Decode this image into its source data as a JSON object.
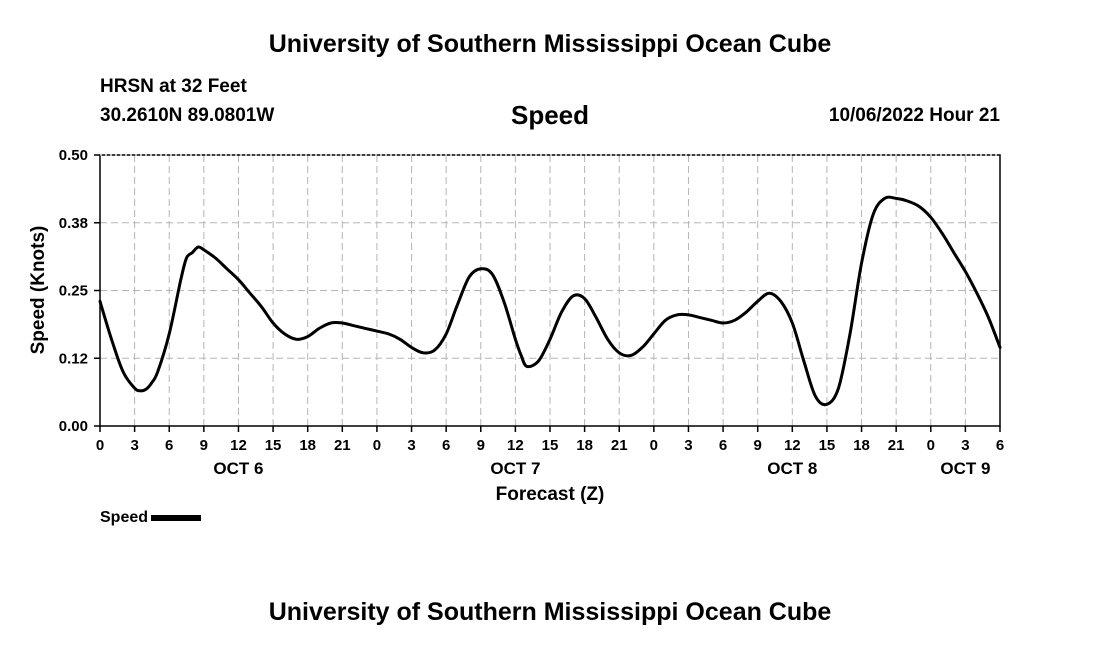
{
  "header": {
    "title": "University of Southern Mississippi Ocean Cube",
    "station": "HRSN at 32 Feet",
    "coordinates": "30.2610N  89.0801W",
    "datetime": "10/06/2022 Hour 21"
  },
  "footer": {
    "title": "University of Southern Mississippi Ocean Cube"
  },
  "legend": {
    "label": "Speed",
    "color": "#000000"
  },
  "chart_data": {
    "type": "line",
    "title": "Speed",
    "xlabel": "Forecast (Z)",
    "ylabel": "Speed (Knots)",
    "ylim": [
      0,
      0.5
    ],
    "yticks": [
      "0.00",
      "0.12",
      "0.25",
      "0.38",
      "0.50"
    ],
    "xlim_hours": [
      0,
      78
    ],
    "xtick_labels": [
      "0",
      "3",
      "6",
      "9",
      "12",
      "15",
      "18",
      "21",
      "0",
      "3",
      "6",
      "9",
      "12",
      "15",
      "18",
      "21",
      "0",
      "3",
      "6",
      "9",
      "12",
      "15",
      "18",
      "21",
      "0",
      "3",
      "6"
    ],
    "date_labels": [
      {
        "label": "OCT 6",
        "hour": 12
      },
      {
        "label": "OCT 7",
        "hour": 36
      },
      {
        "label": "OCT 8",
        "hour": 60
      },
      {
        "label": "OCT 9",
        "hour": 75
      }
    ],
    "grid": true,
    "legend_position": "bottom-left",
    "series": [
      {
        "name": "Speed",
        "color": "#000000",
        "x_hours": [
          0,
          1,
          2,
          3,
          3.5,
          4,
          4.5,
          5,
          6,
          7,
          7.5,
          8,
          8.5,
          9,
          10,
          11,
          12,
          13,
          14,
          15,
          16,
          17,
          18,
          19,
          20,
          21,
          22,
          23,
          24,
          25,
          26,
          27,
          28,
          29,
          30,
          31,
          32,
          33,
          34,
          35,
          36,
          36.5,
          37,
          38,
          39,
          40,
          41,
          42,
          43,
          44,
          45,
          46,
          47,
          48,
          49,
          50,
          51,
          52,
          53,
          54,
          55,
          56,
          57,
          58,
          59,
          60,
          61,
          62,
          63,
          64,
          65,
          66,
          67,
          68,
          69,
          70,
          71,
          72,
          73,
          74,
          75,
          76,
          77,
          78
        ],
        "values": [
          0.23,
          0.16,
          0.1,
          0.07,
          0.065,
          0.068,
          0.08,
          0.1,
          0.17,
          0.27,
          0.31,
          0.32,
          0.33,
          0.325,
          0.31,
          0.29,
          0.27,
          0.245,
          0.22,
          0.19,
          0.17,
          0.16,
          0.165,
          0.18,
          0.19,
          0.19,
          0.185,
          0.18,
          0.175,
          0.17,
          0.16,
          0.145,
          0.135,
          0.14,
          0.17,
          0.225,
          0.275,
          0.29,
          0.28,
          0.23,
          0.16,
          0.13,
          0.11,
          0.12,
          0.16,
          0.21,
          0.24,
          0.235,
          0.2,
          0.16,
          0.135,
          0.13,
          0.145,
          0.17,
          0.195,
          0.205,
          0.205,
          0.2,
          0.195,
          0.19,
          0.195,
          0.21,
          0.23,
          0.245,
          0.23,
          0.19,
          0.12,
          0.055,
          0.04,
          0.07,
          0.17,
          0.3,
          0.39,
          0.42,
          0.42,
          0.415,
          0.405,
          0.385,
          0.355,
          0.32,
          0.285,
          0.245,
          0.2,
          0.145
        ]
      }
    ]
  }
}
